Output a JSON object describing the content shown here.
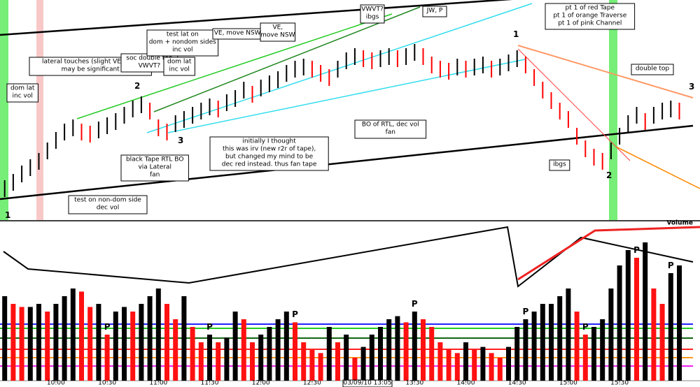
{
  "chart_data": [
    {
      "type": "range-bar",
      "ylim": [
        0,
        100
      ],
      "high": [
        19,
        22,
        26,
        29,
        32,
        37,
        42,
        46,
        48,
        46,
        45,
        47,
        49,
        51,
        54,
        57,
        59,
        56,
        48,
        46,
        50,
        52,
        54,
        56,
        58,
        57,
        60,
        62,
        66,
        64,
        67,
        69,
        71,
        74,
        76,
        77,
        76,
        74,
        72,
        76,
        80,
        82,
        81,
        80,
        81,
        82,
        81,
        82,
        84,
        82,
        78,
        76,
        75,
        77,
        76,
        77,
        78,
        76,
        77,
        79,
        81,
        78,
        72,
        66,
        61,
        56,
        52,
        44,
        38,
        34,
        32,
        37,
        44,
        50,
        54,
        51,
        54,
        56,
        57,
        56
      ],
      "low": [
        11,
        14,
        18,
        21,
        24,
        29,
        34,
        38,
        40,
        38,
        37,
        39,
        41,
        43,
        46,
        49,
        51,
        48,
        40,
        38,
        42,
        44,
        46,
        48,
        50,
        49,
        52,
        54,
        58,
        56,
        59,
        61,
        63,
        66,
        68,
        69,
        68,
        66,
        64,
        68,
        72,
        74,
        73,
        72,
        73,
        74,
        73,
        74,
        76,
        74,
        70,
        68,
        67,
        69,
        68,
        69,
        70,
        68,
        69,
        71,
        73,
        70,
        64,
        58,
        53,
        48,
        44,
        36,
        30,
        26,
        24,
        29,
        36,
        42,
        46,
        43,
        46,
        48,
        49,
        48
      ],
      "up_color": "#000000",
      "down_color": "#ff0000",
      "annotations": [
        {
          "lines": [
            "dom lat",
            "inc vol"
          ]
        },
        {
          "lines": [
            "lateral touches (slight VE?) LTL",
            "may be significant"
          ]
        },
        {
          "lines": [
            "soc double top",
            "VWVT?"
          ]
        },
        {
          "lines": [
            "test lat on",
            "dom + nondom sides",
            "inc vol"
          ]
        },
        {
          "lines": [
            "dom lat",
            "inc vol"
          ]
        },
        {
          "lines": [
            "VE, move NSW"
          ]
        },
        {
          "lines": [
            "VE,",
            "move NSW"
          ]
        },
        {
          "lines": [
            "VWVT?",
            "ibgs"
          ]
        },
        {
          "lines": [
            "JW, P"
          ]
        },
        {
          "lines": [
            "pt 1 of red Tape",
            "pt 1 of orange Traverse",
            "pt 1 of pink Channel"
          ]
        },
        {
          "lines": [
            "double top"
          ]
        },
        {
          "lines": [
            "BO of RTL, dec vol",
            "fan"
          ]
        },
        {
          "lines": [
            "initially I thought",
            "this was irv (new r2r of tape),",
            "but changed my mind to be",
            "dec red instead.  thus fan tape"
          ]
        },
        {
          "lines": [
            "black Tape RTL BO",
            "via Lateral",
            "fan"
          ]
        },
        {
          "lines": [
            "test on non-dom side",
            "dec vol"
          ]
        },
        {
          "lines": [
            "ibgs"
          ]
        }
      ],
      "point_labels": [
        {
          "text": "2",
          "color": "#22aa22"
        },
        {
          "text": "3",
          "color": "#22aa22"
        },
        {
          "text": "1",
          "color": "#22aa22"
        },
        {
          "text": "1",
          "color": "#ff8800"
        },
        {
          "text": "2",
          "color": "#ff8800"
        },
        {
          "text": "3",
          "color": "#ff8800"
        }
      ]
    },
    {
      "type": "bar",
      "title": "Volume",
      "ylim": [
        0,
        100
      ],
      "categories": [
        null,
        null,
        null,
        null,
        null,
        null,
        "10:00",
        null,
        null,
        null,
        null,
        null,
        "10:30",
        null,
        null,
        null,
        null,
        null,
        "11:00",
        null,
        null,
        null,
        null,
        null,
        "11:30",
        null,
        null,
        null,
        null,
        null,
        "12:00",
        null,
        null,
        null,
        null,
        null,
        "12:30",
        null,
        null,
        null,
        null,
        null,
        "13:00",
        null,
        null,
        null,
        null,
        null,
        "13:30",
        null,
        null,
        null,
        null,
        null,
        "14:00",
        null,
        null,
        null,
        null,
        null,
        "14:30",
        null,
        null,
        null,
        null,
        null,
        "15:00",
        null,
        null,
        null,
        null,
        null,
        "15:30",
        null,
        null,
        null,
        null,
        null,
        null,
        null
      ],
      "values": [
        55,
        50,
        48,
        48,
        50,
        45,
        50,
        55,
        60,
        58,
        48,
        50,
        30,
        45,
        48,
        45,
        50,
        55,
        60,
        50,
        40,
        55,
        35,
        25,
        30,
        25,
        28,
        45,
        40,
        25,
        30,
        35,
        40,
        45,
        38,
        25,
        20,
        18,
        35,
        25,
        30,
        15,
        22,
        30,
        35,
        40,
        42,
        38,
        45,
        40,
        35,
        25,
        20,
        18,
        25,
        20,
        22,
        18,
        15,
        22,
        35,
        40,
        45,
        50,
        50,
        55,
        60,
        45,
        30,
        35,
        40,
        60,
        75,
        85,
        80,
        90,
        60,
        50,
        70,
        75
      ],
      "markers": [
        {
          "text": "P",
          "index": 12
        },
        {
          "text": "P",
          "index": 24
        },
        {
          "text": "P",
          "index": 34
        },
        {
          "text": "P",
          "index": 48
        },
        {
          "text": "P",
          "index": 61
        },
        {
          "text": "P",
          "index": 68
        },
        {
          "text": "P",
          "index": 74
        },
        {
          "text": "P",
          "index": 78
        }
      ],
      "date_label": "03/09/10 13:05"
    }
  ]
}
